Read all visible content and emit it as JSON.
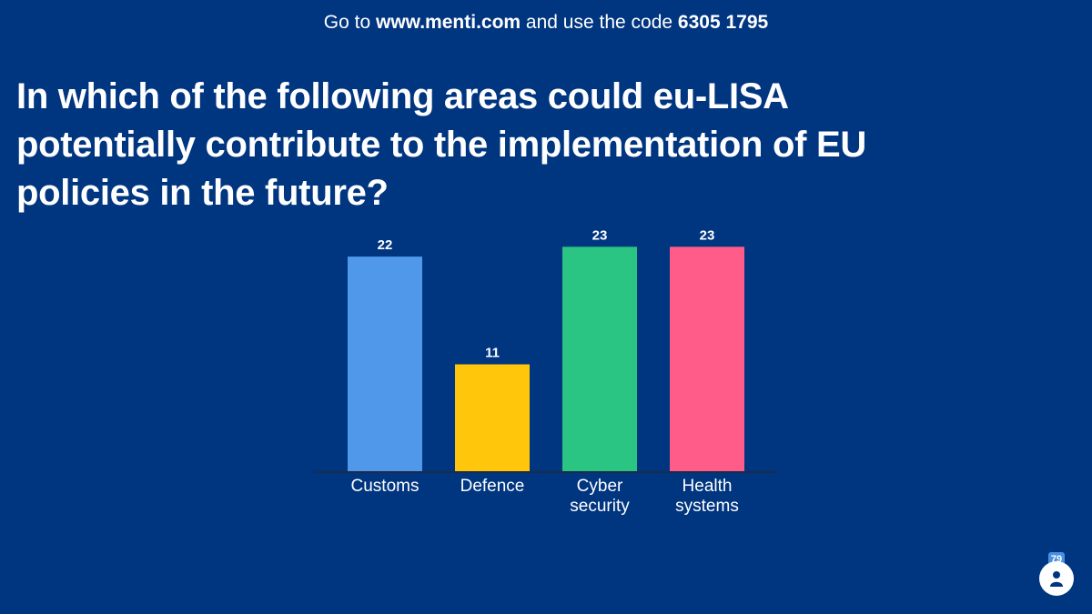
{
  "banner": {
    "prefix": "Go to ",
    "url": "www.menti.com",
    "middle": " and use the code ",
    "code": "6305 1795"
  },
  "question": "In which of the following areas could eu-LISA potentially contribute to the implementation of EU policies in the future?",
  "participants": {
    "count": "79",
    "icon": "person-icon"
  },
  "chart_data": {
    "type": "bar",
    "title": "",
    "xlabel": "",
    "ylabel": "",
    "ylim": [
      0,
      25
    ],
    "grid": false,
    "categories": [
      {
        "lines": [
          "Customs"
        ]
      },
      {
        "lines": [
          "Defence"
        ]
      },
      {
        "lines": [
          "Cyber",
          "security"
        ]
      },
      {
        "lines": [
          "Health",
          "systems"
        ]
      }
    ],
    "values": [
      22,
      11,
      23,
      23
    ],
    "colors": [
      "#4f98ea",
      "#ffc60b",
      "#2ac582",
      "#ff5c8a"
    ]
  }
}
